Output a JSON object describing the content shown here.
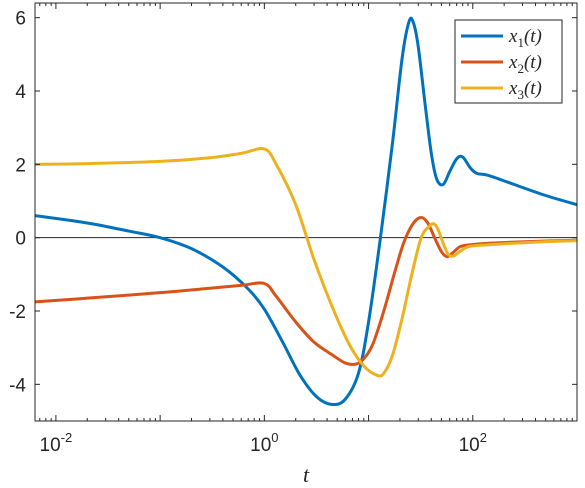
{
  "chart_data": {
    "type": "line",
    "xscale": "log",
    "xlim": [
      0.0063,
      1000
    ],
    "ylim": [
      -5,
      6.4
    ],
    "xlabel": "t",
    "xticks": [
      {
        "value": 0.01,
        "base": "10",
        "exp": "-2"
      },
      {
        "value": 1,
        "base": "10",
        "exp": "0"
      },
      {
        "value": 100,
        "base": "10",
        "exp": "2"
      }
    ],
    "yticks": [
      6,
      4,
      2,
      0,
      -2,
      -4
    ],
    "reference_line": {
      "y": 0,
      "color": "#262626"
    },
    "legend_position": "top-right",
    "series": [
      {
        "name": "x",
        "subscript": "1",
        "suffix": "(t)",
        "color": "#0072BD",
        "points": [
          [
            0.0063,
            0.6
          ],
          [
            0.02,
            0.4
          ],
          [
            0.05,
            0.18
          ],
          [
            0.1,
            0.0
          ],
          [
            0.2,
            -0.3
          ],
          [
            0.4,
            -0.8
          ],
          [
            0.7,
            -1.4
          ],
          [
            1.0,
            -1.95
          ],
          [
            1.5,
            -2.85
          ],
          [
            2.2,
            -3.75
          ],
          [
            3.2,
            -4.35
          ],
          [
            4.5,
            -4.55
          ],
          [
            6.0,
            -4.4
          ],
          [
            8.0,
            -3.7
          ],
          [
            10,
            -2.3
          ],
          [
            13,
            0.0
          ],
          [
            17,
            2.6
          ],
          [
            21,
            4.9
          ],
          [
            24.5,
            5.9
          ],
          [
            27,
            5.85
          ],
          [
            30,
            5.2
          ],
          [
            35,
            3.6
          ],
          [
            40,
            2.3
          ],
          [
            45,
            1.6
          ],
          [
            52,
            1.45
          ],
          [
            60,
            1.8
          ],
          [
            70,
            2.15
          ],
          [
            80,
            2.2
          ],
          [
            95,
            1.9
          ],
          [
            110,
            1.75
          ],
          [
            140,
            1.7
          ],
          [
            250,
            1.45
          ],
          [
            500,
            1.15
          ],
          [
            1000,
            0.9
          ]
        ]
      },
      {
        "name": "x",
        "subscript": "2",
        "suffix": "(t)",
        "color": "#D95319",
        "points": [
          [
            0.0063,
            -1.75
          ],
          [
            0.02,
            -1.65
          ],
          [
            0.1,
            -1.5
          ],
          [
            0.3,
            -1.38
          ],
          [
            0.6,
            -1.3
          ],
          [
            1.0,
            -1.25
          ],
          [
            1.3,
            -1.6
          ],
          [
            2.0,
            -2.3
          ],
          [
            3.0,
            -2.85
          ],
          [
            4.5,
            -3.2
          ],
          [
            6.0,
            -3.42
          ],
          [
            7.5,
            -3.45
          ],
          [
            9.0,
            -3.3
          ],
          [
            11,
            -2.9
          ],
          [
            14,
            -2.0
          ],
          [
            18,
            -0.9
          ],
          [
            22,
            -0.1
          ],
          [
            27,
            0.4
          ],
          [
            32,
            0.55
          ],
          [
            37,
            0.4
          ],
          [
            43,
            0.0
          ],
          [
            50,
            -0.38
          ],
          [
            57,
            -0.52
          ],
          [
            65,
            -0.4
          ],
          [
            75,
            -0.25
          ],
          [
            90,
            -0.2
          ],
          [
            150,
            -0.15
          ],
          [
            400,
            -0.1
          ],
          [
            1000,
            -0.07
          ]
        ]
      },
      {
        "name": "x",
        "subscript": "3",
        "suffix": "(t)",
        "color": "#EDB120",
        "points": [
          [
            0.0063,
            2.0
          ],
          [
            0.02,
            2.02
          ],
          [
            0.1,
            2.08
          ],
          [
            0.3,
            2.18
          ],
          [
            0.6,
            2.3
          ],
          [
            1.0,
            2.42
          ],
          [
            1.3,
            2.0
          ],
          [
            2.0,
            0.9
          ],
          [
            3.0,
            -0.6
          ],
          [
            4.5,
            -1.9
          ],
          [
            6.5,
            -2.9
          ],
          [
            9.0,
            -3.5
          ],
          [
            12,
            -3.75
          ],
          [
            14,
            -3.7
          ],
          [
            17,
            -3.2
          ],
          [
            21,
            -2.2
          ],
          [
            26,
            -1.0
          ],
          [
            32,
            0.0
          ],
          [
            38,
            0.3
          ],
          [
            42,
            0.38
          ],
          [
            46,
            0.25
          ],
          [
            52,
            -0.15
          ],
          [
            58,
            -0.45
          ],
          [
            65,
            -0.5
          ],
          [
            75,
            -0.38
          ],
          [
            90,
            -0.25
          ],
          [
            130,
            -0.2
          ],
          [
            400,
            -0.12
          ],
          [
            1000,
            -0.08
          ]
        ]
      }
    ]
  }
}
